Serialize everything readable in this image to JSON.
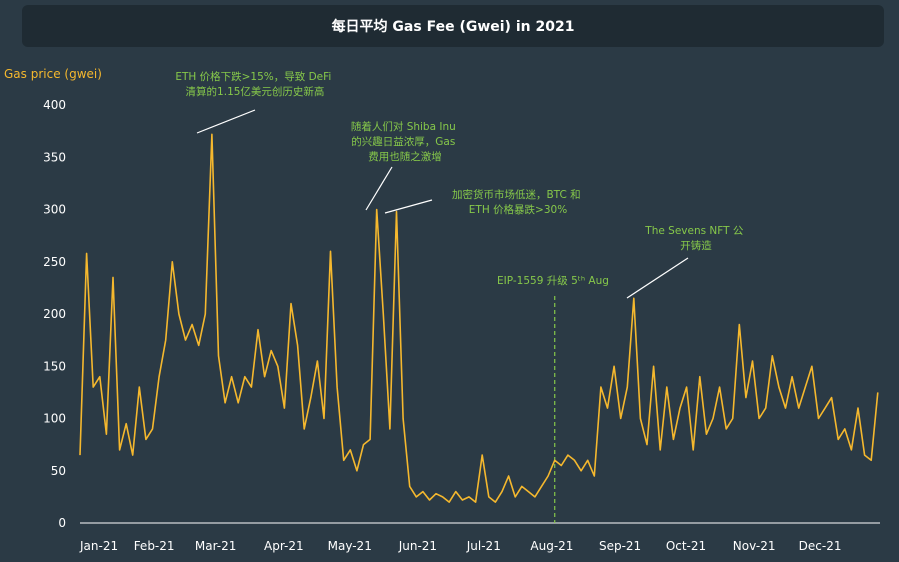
{
  "header": {
    "title": "每日平均 Gas Fee (Gwei) in 2021"
  },
  "chart_data": {
    "type": "line",
    "title": "每日平均 Gas Fee (Gwei) in 2021",
    "xlabel": "",
    "ylabel": "Gas price (gwei)",
    "ylim": [
      0,
      400
    ],
    "yticks": [
      "0",
      "50",
      "100",
      "150",
      "200",
      "250",
      "300",
      "350",
      "400"
    ],
    "categories": [
      "Jan-21",
      "Feb-21",
      "Mar-21",
      "Apr-21",
      "May-21",
      "Jun-21",
      "Jul-21",
      "Aug-21",
      "Sep-21",
      "Oct-21",
      "Nov-21",
      "Dec-21"
    ],
    "grid": false,
    "colors": {
      "line": "#f5b82e",
      "annotation": "#86c84a",
      "background": "#2b3a45",
      "title_bar": "#1f2b33"
    },
    "series": [
      {
        "x": [
          "2021-01-01",
          "2021-01-04",
          "2021-01-07",
          "2021-01-10",
          "2021-01-13",
          "2021-01-16",
          "2021-01-19",
          "2021-01-22",
          "2021-01-25",
          "2021-01-28",
          "2021-01-31",
          "2021-02-03",
          "2021-02-06",
          "2021-02-09",
          "2021-02-12",
          "2021-02-15",
          "2021-02-18",
          "2021-02-21",
          "2021-02-24",
          "2021-02-27",
          "2021-03-02",
          "2021-03-05",
          "2021-03-08",
          "2021-03-11",
          "2021-03-14",
          "2021-03-17",
          "2021-03-20",
          "2021-03-23",
          "2021-03-26",
          "2021-03-29",
          "2021-04-01",
          "2021-04-04",
          "2021-04-07",
          "2021-04-10",
          "2021-04-13",
          "2021-04-16",
          "2021-04-19",
          "2021-04-22",
          "2021-04-25",
          "2021-04-28",
          "2021-05-01",
          "2021-05-04",
          "2021-05-07",
          "2021-05-10",
          "2021-05-13",
          "2021-05-16",
          "2021-05-19",
          "2021-05-22",
          "2021-05-25",
          "2021-05-28",
          "2021-05-31",
          "2021-06-03",
          "2021-06-06",
          "2021-06-09",
          "2021-06-12",
          "2021-06-15",
          "2021-06-18",
          "2021-06-21",
          "2021-06-24",
          "2021-06-27",
          "2021-06-30",
          "2021-07-03",
          "2021-07-06",
          "2021-07-09",
          "2021-07-12",
          "2021-07-15",
          "2021-07-18",
          "2021-07-21",
          "2021-07-24",
          "2021-07-27",
          "2021-07-30",
          "2021-08-02",
          "2021-08-05",
          "2021-08-08",
          "2021-08-11",
          "2021-08-14",
          "2021-08-17",
          "2021-08-20",
          "2021-08-23",
          "2021-08-26",
          "2021-08-29",
          "2021-09-01",
          "2021-09-04",
          "2021-09-07",
          "2021-09-10",
          "2021-09-13",
          "2021-09-16",
          "2021-09-19",
          "2021-09-22",
          "2021-09-25",
          "2021-09-28",
          "2021-10-01",
          "2021-10-04",
          "2021-10-07",
          "2021-10-10",
          "2021-10-13",
          "2021-10-16",
          "2021-10-19",
          "2021-10-22",
          "2021-10-25",
          "2021-10-28",
          "2021-10-31",
          "2021-11-03",
          "2021-11-06",
          "2021-11-09",
          "2021-11-12",
          "2021-11-15",
          "2021-11-18",
          "2021-11-21",
          "2021-11-24",
          "2021-11-27",
          "2021-11-30",
          "2021-12-03",
          "2021-12-06",
          "2021-12-09",
          "2021-12-12",
          "2021-12-15",
          "2021-12-18",
          "2021-12-21",
          "2021-12-24",
          "2021-12-27",
          "2021-12-30"
        ],
        "values": [
          65,
          258,
          130,
          140,
          85,
          235,
          70,
          95,
          65,
          130,
          80,
          90,
          140,
          175,
          250,
          200,
          175,
          190,
          170,
          200,
          372,
          160,
          115,
          140,
          115,
          140,
          130,
          185,
          140,
          165,
          150,
          110,
          210,
          170,
          90,
          120,
          155,
          100,
          260,
          130,
          60,
          70,
          50,
          75,
          80,
          300,
          200,
          90,
          298,
          100,
          35,
          25,
          30,
          22,
          28,
          25,
          20,
          30,
          22,
          25,
          20,
          65,
          25,
          20,
          30,
          45,
          25,
          35,
          30,
          25,
          35,
          45,
          60,
          55,
          65,
          60,
          50,
          60,
          45,
          130,
          110,
          150,
          100,
          130,
          215,
          100,
          75,
          150,
          70,
          130,
          80,
          110,
          130,
          70,
          140,
          85,
          100,
          130,
          90,
          100,
          190,
          120,
          155,
          100,
          110,
          160,
          130,
          110,
          140,
          110,
          130,
          150,
          100,
          110,
          120,
          80,
          90,
          70,
          110,
          65,
          60,
          125
        ]
      }
    ],
    "annotations": [
      {
        "text_lines": [
          "ETH 价格下跌>15%，导致 DeFi",
          "清算的1.15亿美元创历史新高"
        ]
      },
      {
        "text_lines": [
          "随着人们对 Shiba Inu",
          "的兴趣日益浓厚，Gas",
          "费用也随之激增"
        ]
      },
      {
        "text_lines": [
          "加密货币市场低迷，BTC 和",
          "ETH 价格暴跌>30%"
        ]
      },
      {
        "text_lines": [
          "The Sevens NFT 公",
          "开铸造"
        ]
      },
      {
        "text": "EIP-1559 升级 5ᵗʰ Aug"
      }
    ]
  }
}
